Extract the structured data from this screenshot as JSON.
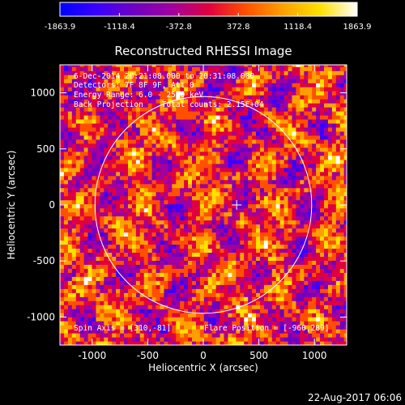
{
  "chart_data": {
    "type": "heatmap",
    "title": "Reconstructed RHESSI Image",
    "xlabel": "Heliocentric X (arcsec)",
    "ylabel": "Heliocentric Y (arcsec)",
    "xlim": [
      -1290,
      1290
    ],
    "ylim": [
      -1250,
      1250
    ],
    "x_ticks": [
      "-1000",
      "-500",
      "0",
      "500",
      "1000"
    ],
    "y_ticks": [
      "-1000",
      "-500",
      "0",
      "500",
      "1000"
    ],
    "x_tick_values": [
      -1000,
      -500,
      0,
      500,
      1000
    ],
    "y_tick_values": [
      -1000,
      -500,
      0,
      500,
      1000
    ],
    "colorbar": {
      "range": [
        -1863.9,
        1863.9
      ],
      "tick_labels": [
        "-1863.9",
        "-1118.4",
        "-372.8",
        "372.8",
        "1118.4",
        "1863.9"
      ],
      "colors": [
        "#0000ff",
        "#3a00ff",
        "#7000c0",
        "#a000a0",
        "#e00040",
        "#ff5000",
        "#ffa000",
        "#ffe000",
        "#ffffff"
      ]
    },
    "solar_limb_radius_arcsec": 975,
    "crosshair": [
      300,
      0
    ],
    "info_lines": [
      "6-Dec-2014 20:21:08.000 to 20:31:08.000",
      "Detectors: 7F 8F 9F, Att 0",
      "Energy Range: 6.0 - 25.0 keV",
      "Back Projection    Total counts: 2.15E+04"
    ],
    "spin_axis": "Spin Axis = [310,-81]",
    "flare_position": "Flare Position = [-960,289]",
    "grid": false
  },
  "footer": {
    "timestamp": "22-Aug-2017 06:06"
  }
}
